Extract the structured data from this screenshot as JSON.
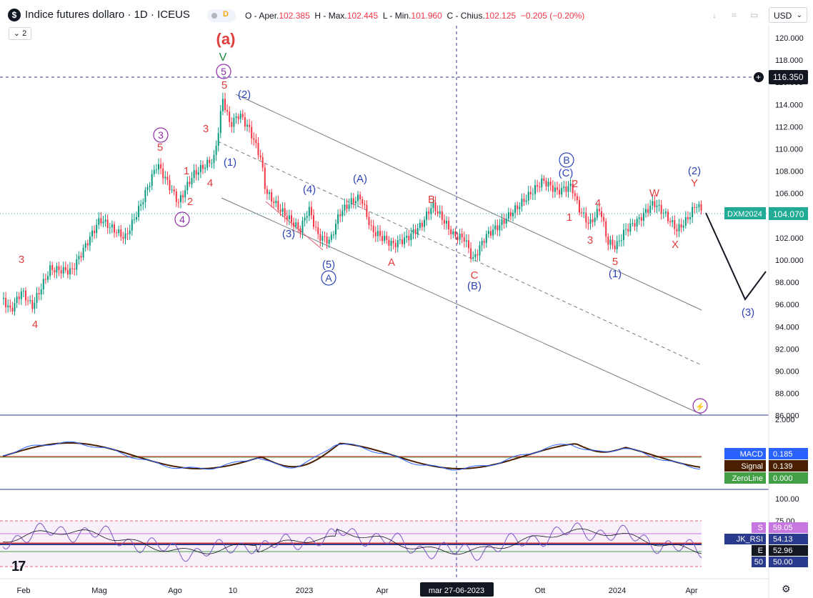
{
  "header": {
    "symbol_badge": "$",
    "title": "Indice futures dollaro · 1D · ICEUS",
    "delay_label": "D",
    "ohlc": {
      "open_label": "O - Aper.",
      "open": "102.385",
      "high_label": "H - Max.",
      "high": "102.445",
      "low_label": "L - Min.",
      "low": "101.960",
      "close_label": "C - Chius.",
      "close": "102.125",
      "change": "−0.205 (−0.20%)"
    },
    "collapse_label": "2",
    "currency": "USD"
  },
  "colors": {
    "up": "#089981",
    "down": "#f23645",
    "wave_red": "#e03c3c",
    "wave_blue": "#2f45b5",
    "wave_purple": "#8e2da5",
    "wave_green": "#1e8a3c",
    "price_tag": "#22ab94",
    "macd": "#2962ff",
    "signal": "#4a1f00",
    "zero": "#43a047",
    "rsi": "#7e57c2"
  },
  "price_axis": {
    "ticks": [
      "120.000",
      "118.000",
      "116.000",
      "114.000",
      "112.000",
      "110.000",
      "108.000",
      "106.000",
      "104.000",
      "102.000",
      "100.000",
      "98.000",
      "96.000",
      "94.000",
      "92.000",
      "90.000",
      "88.000",
      "86.000"
    ],
    "crosshair_value": "116.350",
    "last_symbol": "DXM2024",
    "last_value": "104.070"
  },
  "macd_pane": {
    "top_tick": "2.000",
    "labels": [
      {
        "name": "MACD",
        "value": "0.185"
      },
      {
        "name": "Signal",
        "value": "0.139"
      },
      {
        "name": "ZeroLine",
        "value": "0.000"
      }
    ]
  },
  "rsi_pane": {
    "ticks": [
      "100.00",
      "75.00"
    ],
    "labels": [
      {
        "name": "S",
        "value": "59.05"
      },
      {
        "name": "JK_RSI",
        "value": "54.13"
      },
      {
        "name": "E",
        "value": "52.96"
      },
      {
        "name": "50",
        "value": "50.00"
      }
    ]
  },
  "time_axis": {
    "labels": [
      "Feb",
      "Mag",
      "Ago",
      "10",
      "2023",
      "Apr",
      "Ott",
      "2024",
      "Apr"
    ],
    "crosshair_date": "mar 27-06-2023"
  },
  "wave_labels": {
    "red": [
      "3",
      "4",
      "5",
      "1",
      "2",
      "3",
      "4",
      "5",
      "A",
      "B",
      "C",
      "2",
      "1",
      "4",
      "3",
      "5",
      "W",
      "X",
      "Y"
    ],
    "green": [
      "V"
    ],
    "red_big": [
      "(a)"
    ],
    "blue": [
      "(2)",
      "(1)",
      "(4)",
      "(3)",
      "(5)",
      "(A)",
      "(B)",
      "(C)",
      "(1)",
      "(2)",
      "(3)"
    ],
    "circled": [
      "5",
      "3",
      "4",
      "A",
      "B"
    ]
  },
  "logo": "17"
}
